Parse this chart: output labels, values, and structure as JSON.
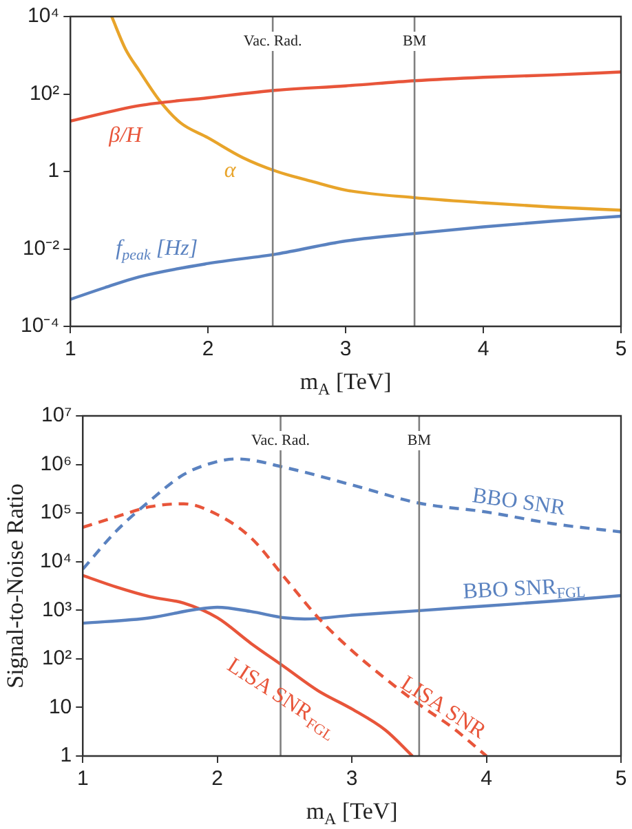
{
  "chart_data": [
    {
      "type": "line",
      "xlabel": "m$_{A}$ [TeV]",
      "log": "y",
      "xlim": [
        1,
        5
      ],
      "xticks": [
        1,
        2,
        3,
        4,
        5
      ],
      "ylim": [
        0.0001,
        10000
      ],
      "yticks": [
        {
          "value": 0.0001,
          "label": "10⁻⁴"
        },
        {
          "value": 0.01,
          "label": "10⁻²"
        },
        {
          "value": 1,
          "label": "1"
        },
        {
          "value": 100,
          "label": "10²"
        },
        {
          "value": 10000,
          "label": "10⁴"
        }
      ],
      "marker": "none",
      "line_style": "solid",
      "ref_lines": [
        {
          "axis": "x",
          "value": 2.47,
          "label": "Vac. Rad.",
          "color": "#808080"
        },
        {
          "axis": "x",
          "value": 3.5,
          "label": "BM",
          "color": "#808080"
        }
      ],
      "series": [
        {
          "name": "β/H",
          "color": "#e8553a",
          "x": [
            1,
            1.5,
            2,
            2.5,
            3,
            3.5,
            4,
            4.5,
            5
          ],
          "values": [
            20,
            50,
            80,
            125,
            162,
            220,
            270,
            310,
            370
          ]
        },
        {
          "name": "α",
          "color": "#e8a42a",
          "x": [
            1.3,
            1.4,
            1.5,
            1.65,
            1.8,
            2,
            2.25,
            2.5,
            2.75,
            3,
            3.5,
            4,
            4.5,
            5
          ],
          "values": [
            10000,
            1450,
            400,
            66,
            18,
            7.4,
            2.3,
            1,
            0.56,
            0.33,
            0.21,
            0.155,
            0.12,
            0.1
          ]
        },
        {
          "name": "f$_{peak}$ [Hz]",
          "color": "#5a82c0",
          "x": [
            1,
            1.25,
            1.5,
            2,
            2.5,
            3,
            3.5,
            4,
            4.5,
            5
          ],
          "values": [
            0.0005,
            0.001,
            0.0019,
            0.0042,
            0.0074,
            0.016,
            0.025,
            0.037,
            0.052,
            0.07
          ]
        }
      ]
    },
    {
      "type": "line",
      "xlabel": "m$_{A}$ [TeV]",
      "ylabel": "Signal-to-Noise Ratio",
      "log": "y",
      "xlim": [
        1,
        5
      ],
      "xticks": [
        1,
        2,
        3,
        4,
        5
      ],
      "ylim": [
        1,
        10000000
      ],
      "yticks": [
        {
          "value": 1,
          "label": "1"
        },
        {
          "value": 10,
          "label": "10"
        },
        {
          "value": 100,
          "label": "10²"
        },
        {
          "value": 1000,
          "label": "10³"
        },
        {
          "value": 10000,
          "label": "10⁴"
        },
        {
          "value": 100000,
          "label": "10⁵"
        },
        {
          "value": 1000000,
          "label": "10⁶"
        },
        {
          "value": 10000000,
          "label": "10⁷"
        }
      ],
      "marker": "none",
      "ref_lines": [
        {
          "axis": "x",
          "value": 2.47,
          "label": "Vac. Rad.",
          "color": "#808080"
        },
        {
          "axis": "x",
          "value": 3.5,
          "label": "BM",
          "color": "#808080"
        }
      ],
      "series": [
        {
          "name": "BBO SNR",
          "color": "#5a82c0",
          "line_style": "dashed",
          "x": [
            1,
            1.25,
            1.5,
            1.75,
            2,
            2.15,
            2.5,
            3,
            3.5,
            4,
            4.5,
            5
          ],
          "values": [
            7000,
            43000,
            180000,
            620000,
            1150000,
            1300000,
            870000,
            380000,
            160000,
            105000,
            60000,
            41000
          ]
        },
        {
          "name": "LISA SNR",
          "color": "#e8553a",
          "line_style": "dashed",
          "x": [
            1,
            1.25,
            1.5,
            1.75,
            2,
            2.25,
            2.5,
            2.75,
            3,
            3.25,
            3.5,
            3.75,
            4
          ],
          "values": [
            51000,
            84000,
            135000,
            155000,
            93000,
            31000,
            4700,
            700,
            148,
            39,
            11.5,
            3.8,
            1
          ]
        },
        {
          "name": "BBO SNR$_{FGL}$",
          "color": "#5a82c0",
          "line_style": "solid",
          "x": [
            1,
            1.5,
            1.85,
            2,
            2.25,
            2.5,
            2.65,
            3,
            3.5,
            4,
            4.5,
            5
          ],
          "values": [
            540,
            700,
            1050,
            1150,
            940,
            700,
            660,
            790,
            980,
            1230,
            1540,
            2000
          ]
        },
        {
          "name": "LISA SNR$_{FGL}$",
          "color": "#e8553a",
          "line_style": "solid",
          "x": [
            1,
            1.25,
            1.5,
            1.75,
            2,
            2.25,
            2.5,
            2.75,
            3,
            3.25,
            3.45
          ],
          "values": [
            5200,
            3000,
            1900,
            1400,
            700,
            208,
            68,
            22,
            9.3,
            3.4,
            1
          ]
        }
      ]
    }
  ]
}
